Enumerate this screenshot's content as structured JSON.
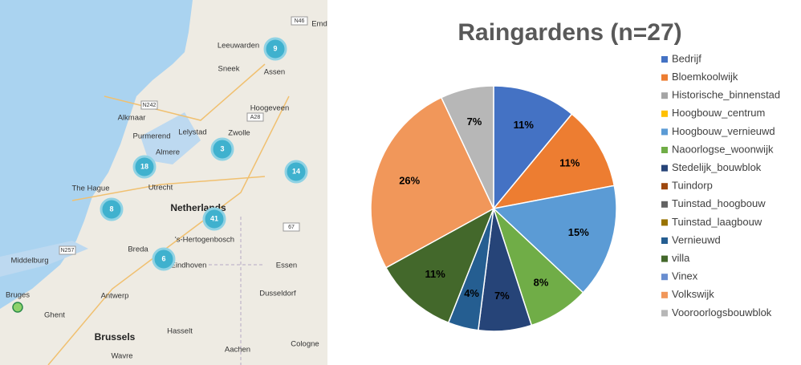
{
  "chart_data": {
    "type": "pie",
    "title": "Raingardens (n=27)",
    "categories": [
      "Bedrijf",
      "Bloemkoolwijk",
      "Historische_binnenstad",
      "Hoogbouw_centrum",
      "Hoogbouw_vernieuwd",
      "Naoorlogse_woonwijk",
      "Stedelijk_bouwblok",
      "Tuindorp",
      "Tuinstad_hoogbouw",
      "Tuinstad_laagbouw",
      "Vernieuwd",
      "villa",
      "Vinex",
      "Volkswijk",
      "Vooroorlogsbouwblok"
    ],
    "values": [
      11,
      11,
      0,
      0,
      15,
      8,
      7,
      0,
      0,
      0,
      4,
      11,
      0,
      26,
      7
    ],
    "value_labels": [
      "11%",
      "11%",
      null,
      null,
      "15%",
      "8%",
      "7%",
      null,
      null,
      null,
      "4%",
      "11%",
      null,
      "26%",
      "7%"
    ],
    "colors": [
      "#4472c4",
      "#ed7d31",
      "#a5a5a5",
      "#ffc000",
      "#5b9bd5",
      "#70ad47",
      "#264478",
      "#9e480e",
      "#636363",
      "#997300",
      "#255e91",
      "#43682b",
      "#698ed0",
      "#f1975a",
      "#b7b7b7"
    ],
    "legend": "right"
  },
  "map": {
    "places": [
      "Leeuwarden",
      "Sneek",
      "Assen",
      "Hoogeveen",
      "Alkmaar",
      "Purmerend",
      "Lelystad",
      "Zwolle",
      "Almere",
      "The Hague",
      "Utrecht",
      "Netherlands",
      "'s-Hertogenbosch",
      "Breda",
      "Eindhoven",
      "Middelburg",
      "Antwerp",
      "Bruges",
      "Ghent",
      "Brussels",
      "Hasselt",
      "Essen",
      "Dusseldorf",
      "Cologne",
      "Aachen",
      "Wavre",
      "Emd"
    ],
    "roads": [
      "N46",
      "N242",
      "A28",
      "N257",
      "67"
    ],
    "clusters": [
      9,
      3,
      18,
      14,
      8,
      41,
      6
    ]
  }
}
